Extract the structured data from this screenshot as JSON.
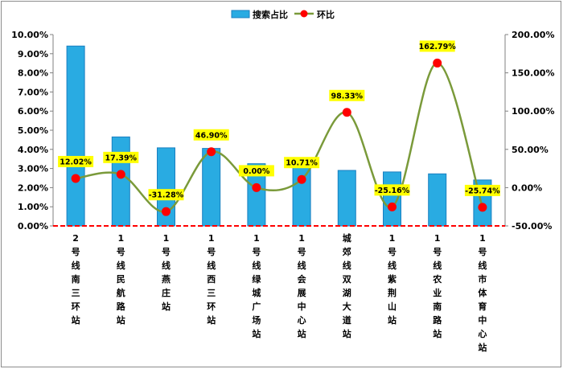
{
  "chart_data": {
    "type": "bar",
    "categories": [
      "2号线南三环站",
      "1号线民航路站",
      "1号线燕庄站",
      "1号线西三环站",
      "1号线绿城广场站",
      "1号线会展中心站",
      "城郊线双湖大道站",
      "1号线紫荆山站",
      "1号线农业南路站",
      "1号线市体育中心站"
    ],
    "series": [
      {
        "name": "搜索占比",
        "type": "bar",
        "axis": "left",
        "color": "#29abe2",
        "values": [
          9.4,
          4.65,
          4.08,
          4.05,
          3.25,
          3.2,
          2.9,
          2.82,
          2.72,
          2.4
        ]
      },
      {
        "name": "环比",
        "type": "line",
        "axis": "right",
        "color": "#7a9a3a",
        "marker_color": "#ff0000",
        "values": [
          12.02,
          17.39,
          -31.28,
          46.9,
          0.0,
          10.71,
          98.33,
          -25.16,
          162.79,
          -25.74
        ],
        "labels": [
          "12.02%",
          "17.39%",
          "-31.28%",
          "46.90%",
          "0.00%",
          "10.71%",
          "98.33%",
          "-25.16%",
          "162.79%",
          "-25.74%"
        ]
      }
    ],
    "y_left": {
      "ylim": [
        0,
        10
      ],
      "ticks": [
        "0.00%",
        "1.00%",
        "2.00%",
        "3.00%",
        "4.00%",
        "5.00%",
        "6.00%",
        "7.00%",
        "8.00%",
        "9.00%",
        "10.00%"
      ]
    },
    "y_right": {
      "ylim": [
        -50,
        200
      ],
      "ticks": [
        "-50.00%",
        "0.00%",
        "50.00%",
        "100.00%",
        "150.00%",
        "200.00%"
      ]
    },
    "legend": {
      "placement": "top-center",
      "items": [
        "搜索占比",
        "环比"
      ]
    },
    "grid": false
  }
}
